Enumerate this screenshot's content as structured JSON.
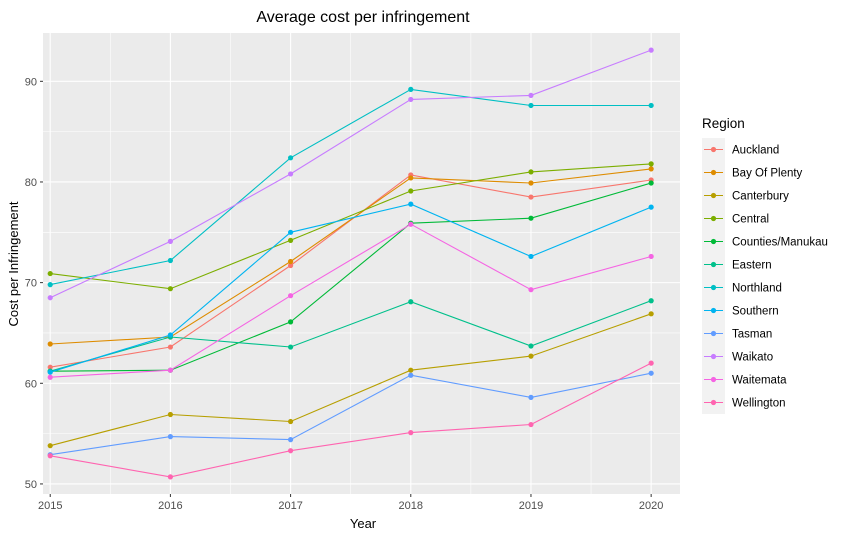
{
  "chart_data": {
    "type": "line",
    "title": "Average cost per infringement",
    "xlabel": "Year",
    "ylabel": "Cost per Infringement",
    "x": [
      2015,
      2016,
      2017,
      2018,
      2019,
      2020
    ],
    "xlim": [
      2014.94,
      2020.24
    ],
    "ylim": [
      49.0,
      94.8
    ],
    "yticks": [
      50,
      60,
      70,
      80,
      90
    ],
    "grid": true,
    "legend": {
      "title": "Region",
      "position": "right"
    },
    "series": [
      {
        "name": "Auckland",
        "color": "#F8766D",
        "values": [
          61.6,
          63.6,
          71.7,
          80.7,
          78.5,
          80.2
        ]
      },
      {
        "name": "Bay Of Plenty",
        "color": "#DE8C00",
        "values": [
          63.9,
          64.6,
          72.1,
          80.4,
          79.9,
          81.3
        ]
      },
      {
        "name": "Canterbury",
        "color": "#B79F00",
        "values": [
          53.8,
          56.9,
          56.2,
          61.3,
          62.7,
          66.9
        ]
      },
      {
        "name": "Central",
        "color": "#7CAE00",
        "values": [
          70.9,
          69.4,
          74.2,
          79.1,
          81.0,
          81.8
        ]
      },
      {
        "name": "Counties/Manukau",
        "color": "#00BA38",
        "values": [
          61.2,
          61.3,
          66.1,
          75.9,
          76.4,
          79.9
        ]
      },
      {
        "name": "Eastern",
        "color": "#00C08B",
        "values": [
          61.2,
          64.6,
          63.6,
          68.1,
          63.7,
          68.2
        ]
      },
      {
        "name": "Northland",
        "color": "#00BFC4",
        "values": [
          69.8,
          72.2,
          82.4,
          89.2,
          87.6,
          87.6
        ]
      },
      {
        "name": "Southern",
        "color": "#00B4F0",
        "values": [
          61.1,
          64.8,
          75.0,
          77.8,
          72.6,
          77.5
        ]
      },
      {
        "name": "Tasman",
        "color": "#619CFF",
        "values": [
          52.9,
          54.7,
          54.4,
          60.8,
          58.6,
          61.0
        ]
      },
      {
        "name": "Waikato",
        "color": "#C77CFF",
        "values": [
          68.5,
          74.1,
          80.8,
          88.2,
          88.6,
          93.1
        ]
      },
      {
        "name": "Waitemata",
        "color": "#F564E3",
        "values": [
          60.6,
          61.3,
          68.7,
          75.8,
          69.3,
          72.6
        ]
      },
      {
        "name": "Wellington",
        "color": "#FF64B0",
        "values": [
          52.8,
          50.7,
          53.3,
          55.1,
          55.9,
          62.0
        ]
      }
    ]
  }
}
